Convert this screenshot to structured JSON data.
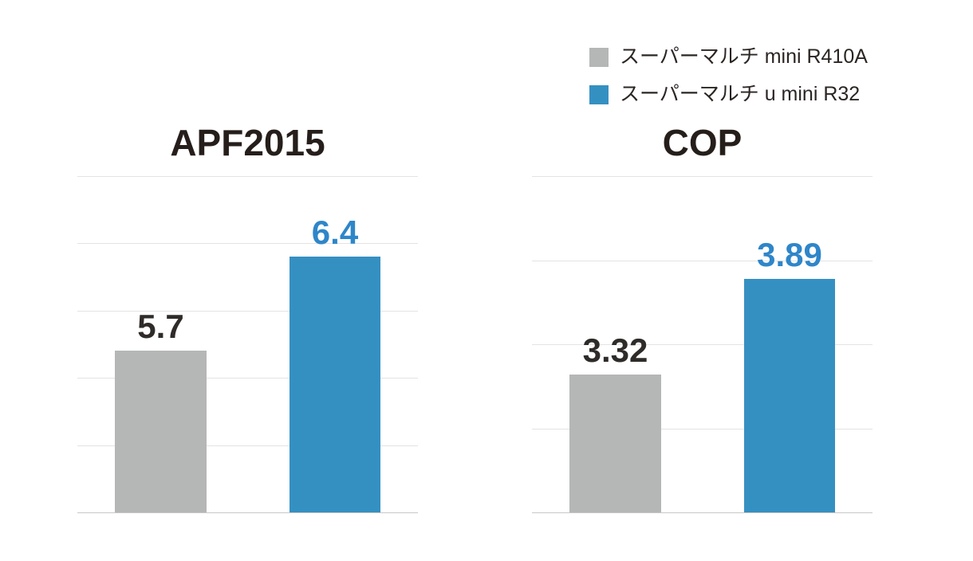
{
  "page": {
    "background": "#ffffff"
  },
  "colors": {
    "bar_gray": "#b5b6b6",
    "bar_blue": "#3590c2",
    "value_label_dark": "#2e2b29",
    "value_label_blue": "#2e86c9",
    "title_color": "#251e1b",
    "gridline": "#e3e3e3",
    "baseline": "#c7c7c7"
  },
  "legend": {
    "items": [
      {
        "label": "スーパーマルチ mini R410A",
        "color": "#b5b6b6",
        "series": "r410a"
      },
      {
        "label": "スーパーマルチ u mini R32",
        "color": "#3590c2",
        "series": "r32"
      }
    ]
  },
  "chart_data": [
    {
      "type": "bar",
      "title": "APF2015",
      "categories": [
        "スーパーマルチ mini R410A",
        "スーパーマルチ u mini R32"
      ],
      "series": [
        {
          "name": "スーパーマルチ mini R410A",
          "value": 5.7
        },
        {
          "name": "スーパーマルチ u mini R32",
          "value": 6.4
        }
      ],
      "values": [
        5.7,
        6.4
      ],
      "value_labels": [
        "5.7",
        "6.4"
      ],
      "xlabel": "",
      "ylabel": "",
      "ylim": [
        4.5,
        7.0
      ],
      "grid_step": 0.5,
      "grid": "on",
      "legend_position": "top-right-shared"
    },
    {
      "type": "bar",
      "title": "COP",
      "categories": [
        "スーパーマルチ mini R410A",
        "スーパーマルチ u mini R32"
      ],
      "series": [
        {
          "name": "スーパーマルチ mini R410A",
          "value": 3.32
        },
        {
          "name": "スーパーマルチ u mini R32",
          "value": 3.89
        }
      ],
      "values": [
        3.32,
        3.89
      ],
      "value_labels": [
        "3.32",
        "3.89"
      ],
      "xlabel": "",
      "ylabel": "",
      "ylim": [
        2.5,
        4.5
      ],
      "grid_step": 0.5,
      "grid": "on",
      "legend_position": "top-right-shared"
    }
  ]
}
